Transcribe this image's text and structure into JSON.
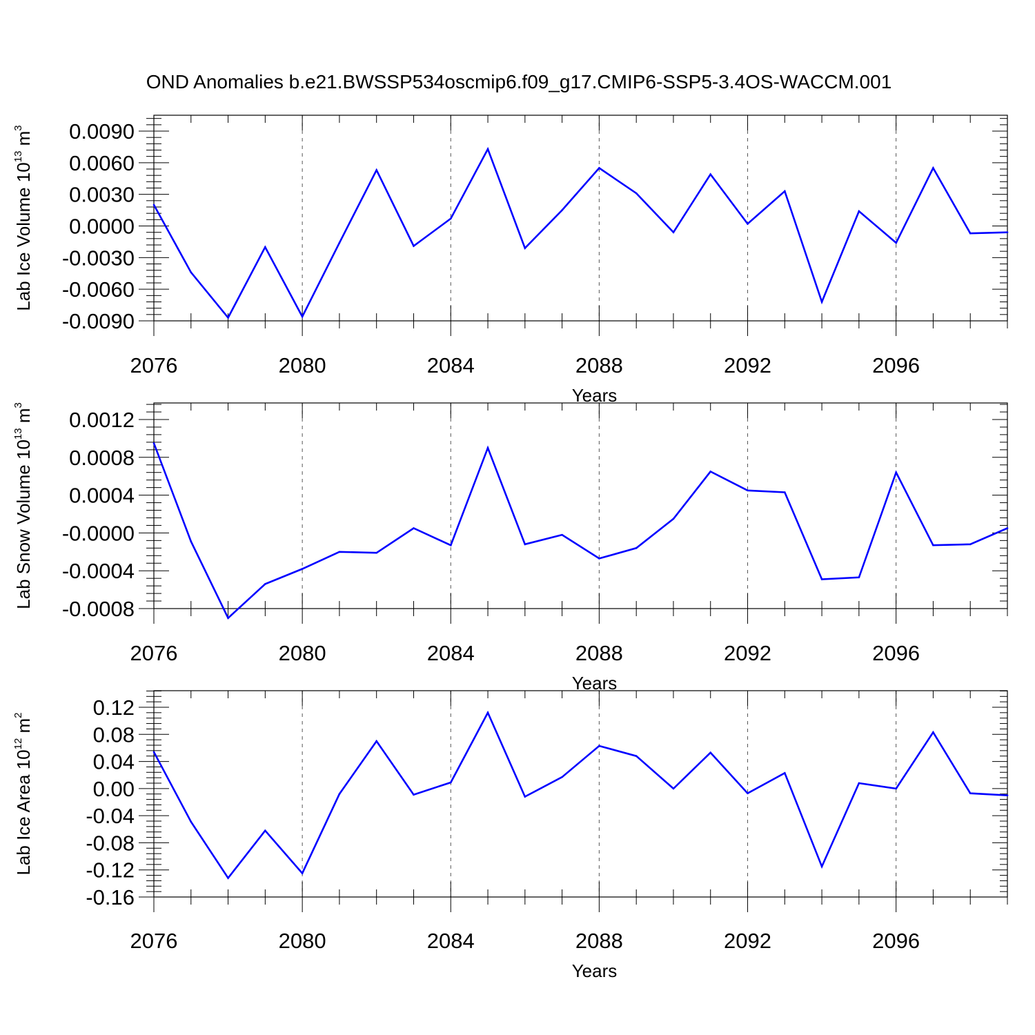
{
  "title": "OND Anomalies b.e21.BWSSP534oscmip6.f09_g17.CMIP6-SSP5-3.4OS-WACCM.001",
  "colors": {
    "line": "#0000ff",
    "axes": "#000000",
    "grid": "#555555"
  },
  "chart_data": [
    {
      "type": "line",
      "ylabel": {
        "prefix": "Lab Ice Volume 10",
        "exponent": "13",
        "unit": " m",
        "unit_exponent": "3"
      },
      "xlabel": "Years",
      "xlim": [
        2076,
        2099
      ],
      "ylim": [
        -0.009,
        0.0098
      ],
      "y_ticks": [
        -0.009,
        -0.006,
        -0.003,
        0.0,
        0.003,
        0.006,
        0.009
      ],
      "y_tick_labels": [
        "-0.0090",
        "-0.0060",
        "-0.0030",
        "0.0000",
        "0.0030",
        "0.0060",
        "0.0090"
      ],
      "x_ticks": [
        2076,
        2080,
        2084,
        2088,
        2092,
        2096
      ],
      "x_tick_labels": [
        "2076",
        "2080",
        "2084",
        "2088",
        "2092",
        "2096"
      ],
      "grid": "vertical dashed at major x ticks",
      "x": [
        2076,
        2077,
        2078,
        2079,
        2080,
        2081,
        2082,
        2083,
        2084,
        2085,
        2086,
        2087,
        2088,
        2089,
        2090,
        2091,
        2092,
        2093,
        2094,
        2095,
        2096,
        2097,
        2098,
        2099
      ],
      "values": [
        0.002,
        -0.0044,
        -0.0087,
        -0.002,
        -0.0086,
        -0.0016,
        0.0053,
        -0.0019,
        0.0007,
        0.0073,
        -0.0021,
        0.0015,
        0.0055,
        0.0031,
        -0.0006,
        0.0049,
        0.0002,
        0.0033,
        -0.0072,
        0.0014,
        -0.0016,
        0.0055,
        -0.0007,
        -0.0006
      ]
    },
    {
      "type": "line",
      "ylabel": {
        "prefix": "Lab Snow Volume 10",
        "exponent": "13",
        "unit": " m",
        "unit_exponent": "3"
      },
      "xlabel": "Years",
      "xlim": [
        2076,
        2099
      ],
      "ylim": [
        -0.0009,
        0.0012
      ],
      "y_ticks": [
        -0.0008,
        -0.0004,
        0.0,
        0.0004,
        0.0008,
        0.0012
      ],
      "y_tick_labels": [
        "-0.0008",
        "-0.0004",
        "-0.0000",
        "0.0004",
        "0.0008",
        "0.0012"
      ],
      "x_ticks": [
        2076,
        2080,
        2084,
        2088,
        2092,
        2096
      ],
      "x_tick_labels": [
        "2076",
        "2080",
        "2084",
        "2088",
        "2092",
        "2096"
      ],
      "grid": "vertical dashed at major x ticks",
      "x": [
        2076,
        2077,
        2078,
        2079,
        2080,
        2081,
        2082,
        2083,
        2084,
        2085,
        2086,
        2087,
        2088,
        2089,
        2090,
        2091,
        2092,
        2093,
        2094,
        2095,
        2096,
        2097,
        2098,
        2099
      ],
      "values": [
        0.00095,
        -9e-05,
        -0.0009,
        -0.00054,
        -0.00038,
        -0.0002,
        -0.00021,
        5e-05,
        -0.00013,
        0.0009,
        -0.00012,
        -2e-05,
        -0.00027,
        -0.00016,
        0.00015,
        0.00065,
        0.00045,
        0.00043,
        -0.00049,
        -0.00047,
        0.00064,
        -0.00013,
        -0.00012,
        5e-05
      ]
    },
    {
      "type": "line",
      "ylabel": {
        "prefix": "Lab Ice Area 10",
        "exponent": "12",
        "unit": " m",
        "unit_exponent": "2"
      },
      "xlabel": "Years",
      "xlim": [
        2076,
        2099
      ],
      "ylim": [
        -0.16,
        0.12
      ],
      "y_ticks": [
        -0.16,
        -0.12,
        -0.08,
        -0.04,
        0.0,
        0.04,
        0.08,
        0.12
      ],
      "y_tick_labels": [
        "-0.16",
        "-0.12",
        "-0.08",
        "-0.04",
        "0.00",
        "0.04",
        "0.08",
        "0.12"
      ],
      "x_ticks": [
        2076,
        2080,
        2084,
        2088,
        2092,
        2096
      ],
      "x_tick_labels": [
        "2076",
        "2080",
        "2084",
        "2088",
        "2092",
        "2096"
      ],
      "grid": "vertical dashed at major x ticks",
      "x": [
        2076,
        2077,
        2078,
        2079,
        2080,
        2081,
        2082,
        2083,
        2084,
        2085,
        2086,
        2087,
        2088,
        2089,
        2090,
        2091,
        2092,
        2093,
        2094,
        2095,
        2096,
        2097,
        2098,
        2099
      ],
      "values": [
        0.054,
        -0.049,
        -0.132,
        -0.062,
        -0.125,
        -0.008,
        0.07,
        -0.009,
        0.009,
        0.112,
        -0.012,
        0.017,
        0.063,
        0.048,
        0.0,
        0.053,
        -0.007,
        0.023,
        -0.115,
        0.008,
        0.0,
        0.083,
        -0.007,
        -0.01
      ]
    }
  ]
}
